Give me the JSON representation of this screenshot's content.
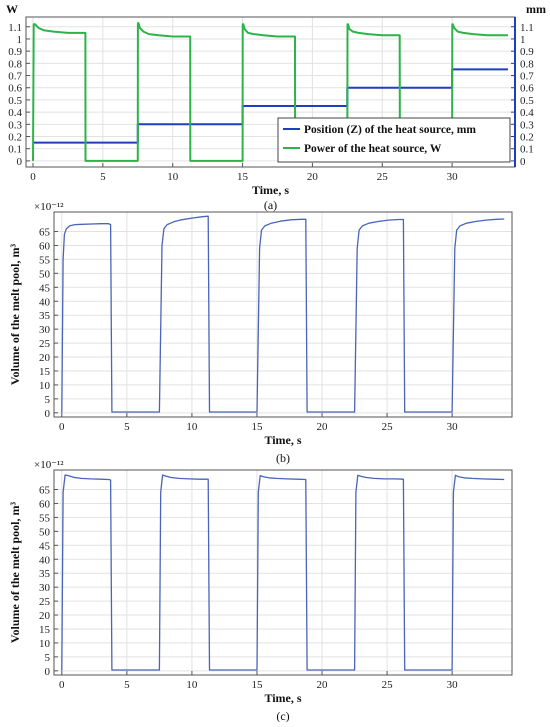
{
  "chart_data": [
    {
      "type": "line",
      "panel_label": "(a)",
      "xlabel": "Time, s",
      "ylabel_left_unit": "W",
      "ylabel_right_unit": "mm",
      "xlim": [
        -0.5,
        34.5
      ],
      "ylim": [
        -0.05,
        1.18
      ],
      "x_ticks": [
        0,
        5,
        10,
        15,
        20,
        25,
        30
      ],
      "y_ticks": [
        0,
        0.1,
        0.2,
        0.3,
        0.4,
        0.5,
        0.6,
        0.7,
        0.8,
        0.9,
        1,
        1.1
      ],
      "y_tick_labels": [
        "0",
        "0.1",
        "0.2",
        "0.3",
        "0.4",
        "0.5",
        "0.6",
        "0.7",
        "0.8",
        "0.9",
        "1",
        "1.1"
      ],
      "legend_position": "bottom-right",
      "series": [
        {
          "name": "Position (Z) of the heat source, mm",
          "color": "#1f3fbf",
          "x": [
            0,
            7.5,
            7.5,
            15,
            15,
            22.5,
            22.5,
            30,
            30,
            34
          ],
          "y": [
            0.15,
            0.15,
            0.3,
            0.3,
            0.45,
            0.45,
            0.6,
            0.6,
            0.75,
            0.75
          ]
        },
        {
          "name": "Power of the heat source, W",
          "color": "#2db34a",
          "x": [
            0,
            0.05,
            0.15,
            0.4,
            0.8,
            1.5,
            2.5,
            3.75,
            3.76,
            7.5,
            7.51,
            7.55,
            7.65,
            7.9,
            8.3,
            9.0,
            10.0,
            11.25,
            11.26,
            15.0,
            15.01,
            15.05,
            15.15,
            15.4,
            15.8,
            16.5,
            17.5,
            18.75,
            18.76,
            22.5,
            22.51,
            22.55,
            22.65,
            22.9,
            23.3,
            24.0,
            25.0,
            26.25,
            26.26,
            30.0,
            30.01,
            30.05,
            30.15,
            30.4,
            30.8,
            31.5,
            32.5,
            34.0
          ],
          "y": [
            0.0,
            1.12,
            1.12,
            1.09,
            1.07,
            1.06,
            1.05,
            1.05,
            0.0,
            0.0,
            1.13,
            1.13,
            1.09,
            1.06,
            1.04,
            1.03,
            1.02,
            1.02,
            0.0,
            0.0,
            1.12,
            1.12,
            1.08,
            1.05,
            1.04,
            1.03,
            1.02,
            1.02,
            0.0,
            0.0,
            1.12,
            1.12,
            1.08,
            1.06,
            1.05,
            1.04,
            1.03,
            1.03,
            0.0,
            0.0,
            1.12,
            1.12,
            1.09,
            1.06,
            1.05,
            1.04,
            1.03,
            1.03
          ]
        }
      ]
    },
    {
      "type": "line",
      "panel_label": "(b)",
      "xlabel": "Time, s",
      "ylabel": "Volume of the melt pool, m³",
      "y_multiplier": "×10⁻¹²",
      "xlim": [
        -0.6,
        34.6
      ],
      "ylim": [
        -1.5,
        72
      ],
      "x_ticks": [
        0,
        5,
        10,
        15,
        20,
        25,
        30
      ],
      "y_ticks": [
        0,
        5,
        10,
        15,
        20,
        25,
        30,
        35,
        40,
        45,
        50,
        55,
        60,
        65
      ],
      "series": [
        {
          "name": "",
          "color": "#4a64b8",
          "x": [
            0,
            0.1,
            0.2,
            0.35,
            0.6,
            1.0,
            1.6,
            2.3,
            3.0,
            3.6,
            3.75,
            3.85,
            4.0,
            7.5,
            7.7,
            7.85,
            8.1,
            8.6,
            9.2,
            10.0,
            10.8,
            11.25,
            11.35,
            11.5,
            15.0,
            15.2,
            15.35,
            15.6,
            16.1,
            16.8,
            17.6,
            18.4,
            18.75,
            18.85,
            19.0,
            22.5,
            22.7,
            22.85,
            23.1,
            23.6,
            24.3,
            25.1,
            25.9,
            26.25,
            26.35,
            26.5,
            30.0,
            30.2,
            30.35,
            30.6,
            31.1,
            31.8,
            32.6,
            33.4,
            34.0
          ],
          "y": [
            0,
            55,
            64,
            66,
            67,
            67.5,
            67.6,
            67.7,
            67.8,
            67.8,
            67.5,
            0.3,
            0.3,
            0.3,
            60,
            66,
            67.5,
            68.5,
            69.2,
            69.8,
            70.3,
            70.5,
            0.3,
            0.3,
            0.3,
            59,
            65.5,
            67,
            68,
            68.7,
            69.2,
            69.4,
            69.4,
            0.3,
            0.3,
            0.3,
            59,
            65.5,
            67,
            68,
            68.6,
            69.1,
            69.3,
            69.3,
            0.3,
            0.3,
            0.3,
            59,
            65.5,
            67,
            68,
            68.6,
            69.1,
            69.4,
            69.5
          ]
        }
      ]
    },
    {
      "type": "line",
      "panel_label": "(c)",
      "xlabel": "Time, s",
      "ylabel": "Volume of the melt pool, m³",
      "y_multiplier": "×10⁻¹²",
      "xlim": [
        -0.6,
        34.6
      ],
      "ylim": [
        -1.5,
        72
      ],
      "x_ticks": [
        0,
        5,
        10,
        15,
        20,
        25,
        30
      ],
      "y_ticks": [
        0,
        5,
        10,
        15,
        20,
        25,
        30,
        35,
        40,
        45,
        50,
        55,
        60,
        65
      ],
      "series": [
        {
          "name": "",
          "color": "#4a64b8",
          "x": [
            0,
            0.1,
            0.25,
            0.5,
            0.9,
            1.5,
            2.2,
            3.0,
            3.6,
            3.75,
            3.85,
            4.0,
            7.5,
            7.6,
            7.75,
            8.0,
            8.4,
            9.0,
            9.8,
            10.6,
            11.25,
            11.35,
            11.5,
            15.0,
            15.1,
            15.25,
            15.5,
            15.9,
            16.5,
            17.3,
            18.1,
            18.75,
            18.85,
            19.0,
            22.5,
            22.6,
            22.75,
            23.0,
            23.4,
            24.0,
            24.8,
            25.6,
            26.25,
            26.35,
            26.5,
            30.0,
            30.1,
            30.25,
            30.5,
            30.9,
            31.5,
            32.3,
            33.1,
            34.0
          ],
          "y": [
            0,
            64,
            70.2,
            70.0,
            69.4,
            69.0,
            68.8,
            68.7,
            68.6,
            68.4,
            0.3,
            0.3,
            0.3,
            64,
            70.2,
            69.8,
            69.3,
            69.0,
            68.8,
            68.7,
            68.7,
            0.3,
            0.3,
            0.3,
            64,
            70.0,
            69.6,
            69.2,
            69.0,
            68.8,
            68.7,
            68.6,
            0.3,
            0.3,
            0.3,
            64,
            70.1,
            69.7,
            69.3,
            69.0,
            68.8,
            68.8,
            68.7,
            0.3,
            0.3,
            0.3,
            64,
            70.1,
            69.6,
            69.2,
            69.0,
            68.8,
            68.7,
            68.6
          ]
        }
      ]
    }
  ]
}
